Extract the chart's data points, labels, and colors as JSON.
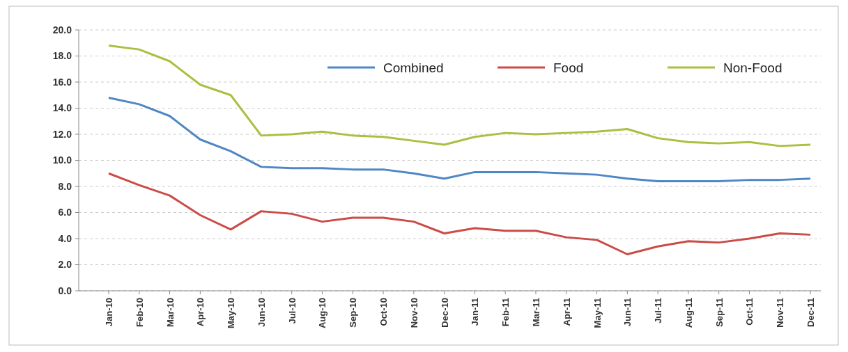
{
  "chart_data": {
    "type": "line",
    "categories": [
      "Jan-10",
      "Feb-10",
      "Mar-10",
      "Apr-10",
      "May-10",
      "Jun-10",
      "Jul-10",
      "Aug-10",
      "Sep-10",
      "Oct-10",
      "Nov-10",
      "Dec-10",
      "Jan-11",
      "Feb-11",
      "Mar-11",
      "Apr-11",
      "May-11",
      "Jun-11",
      "Jul-11",
      "Aug-11",
      "Sep-11",
      "Oct-11",
      "Nov-11",
      "Dec-11"
    ],
    "series": [
      {
        "name": "Combined",
        "color": "#4f87c4",
        "values": [
          14.8,
          14.3,
          13.4,
          11.6,
          10.7,
          9.5,
          9.4,
          9.4,
          9.3,
          9.3,
          9.0,
          8.6,
          9.1,
          9.1,
          9.1,
          9.0,
          8.9,
          8.6,
          8.4,
          8.4,
          8.4,
          8.5,
          8.5,
          8.6
        ]
      },
      {
        "name": "Food",
        "color": "#cc4b47",
        "values": [
          9.0,
          8.1,
          7.3,
          5.8,
          4.7,
          6.1,
          5.9,
          5.3,
          5.6,
          5.6,
          5.3,
          4.4,
          4.8,
          4.6,
          4.6,
          4.1,
          3.9,
          2.8,
          3.4,
          3.8,
          3.7,
          4.0,
          4.4,
          4.3
        ]
      },
      {
        "name": "Non-Food",
        "color": "#a9c040",
        "values": [
          18.8,
          18.5,
          17.6,
          15.8,
          15.0,
          11.9,
          12.0,
          12.2,
          11.9,
          11.8,
          11.5,
          11.2,
          11.8,
          12.1,
          12.0,
          12.1,
          12.2,
          12.4,
          11.7,
          11.4,
          11.3,
          11.4,
          11.1,
          11.2
        ]
      }
    ],
    "ylim": [
      0,
      20
    ],
    "yticks": [
      {
        "value": 0,
        "label": "0.0"
      },
      {
        "value": 2,
        "label": "2.0"
      },
      {
        "value": 4,
        "label": "4.0"
      },
      {
        "value": 6,
        "label": "6.0"
      },
      {
        "value": 8,
        "label": "8.0"
      },
      {
        "value": 10,
        "label": "10.0"
      },
      {
        "value": 12,
        "label": "12.0"
      },
      {
        "value": 14,
        "label": "14.0"
      },
      {
        "value": 16,
        "label": "16.0"
      },
      {
        "value": 18,
        "label": "18.0"
      },
      {
        "value": 20,
        "label": "20.0"
      }
    ],
    "grid": "y",
    "legend": "top",
    "marker": "none",
    "line_style": "solid"
  }
}
